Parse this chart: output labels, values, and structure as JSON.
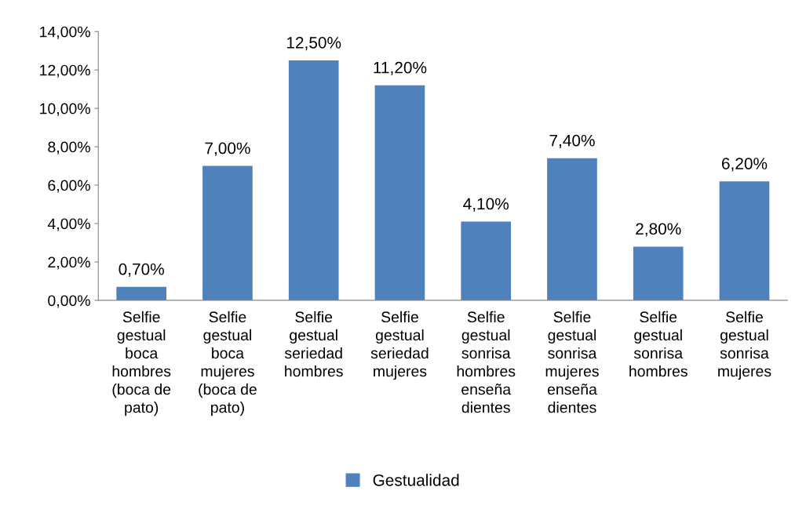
{
  "chart_data": {
    "type": "bar",
    "categories": [
      "Selfie\ngestual\nboca\nhombres\n(boca de\npato)",
      "Selfie\ngestual\nboca\nmujeres\n(boca de\npato)",
      "Selfie\ngestual\nseriedad\nhombres",
      "Selfie\ngestual\nseriedad\nmujeres",
      "Selfie\ngestual\nsonrisa\nhombres\nenseña\ndientes",
      "Selfie\ngestual\nsonrisa\nmujeres\nenseña\ndientes",
      "Selfie\ngestual\nsonrisa\nhombres",
      "Selfie\ngestual\nsonrisa\nmujeres"
    ],
    "series": [
      {
        "name": "Gestualidad",
        "color": "#4f81bd",
        "values": [
          0.7,
          7.0,
          12.5,
          11.2,
          4.1,
          7.4,
          2.8,
          6.2
        ],
        "value_labels": [
          "0,70%",
          "7,00%",
          "12,50%",
          "11,20%",
          "4,10%",
          "7,40%",
          "2,80%",
          "6,20%"
        ]
      }
    ],
    "ylim": [
      0,
      14
    ],
    "yticks": [
      {
        "value": 0,
        "label": "0,00%"
      },
      {
        "value": 2,
        "label": "2,00%"
      },
      {
        "value": 4,
        "label": "4,00%"
      },
      {
        "value": 6,
        "label": "6,00%"
      },
      {
        "value": 8,
        "label": "8,00%"
      },
      {
        "value": 10,
        "label": "10,00%"
      },
      {
        "value": 12,
        "label": "12,00%"
      },
      {
        "value": 14,
        "label": "14,00%"
      }
    ],
    "grid": false,
    "legend": "bottom"
  }
}
